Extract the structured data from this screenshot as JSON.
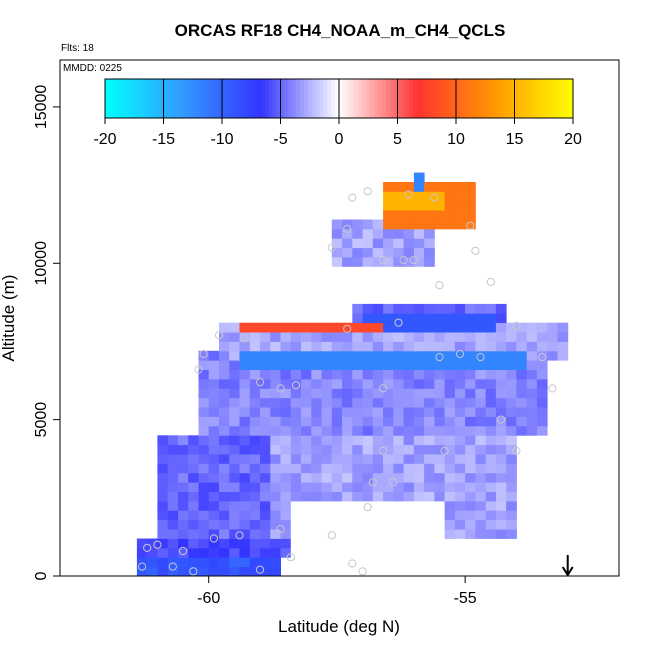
{
  "chart_data": {
    "type": "heatmap",
    "title": "ORCAS RF18 CH4_NOAA_m_CH4_QCLS",
    "flights_label": "Flts: 18",
    "date_label": "MMDD: 0225",
    "xlabel": "Latitude (deg N)",
    "ylabel": "Altitude (m)",
    "xlim": [
      -62.9,
      -52.0
    ],
    "ylim": [
      0,
      16500
    ],
    "x_ticks": [
      -60,
      -55
    ],
    "x_tick_labels": [
      "-60",
      "-55"
    ],
    "y_ticks": [
      0,
      5000,
      10000,
      15000
    ],
    "y_tick_labels": [
      "0",
      "5000",
      "10000",
      "15000"
    ],
    "colorbar": {
      "range": [
        -20,
        20
      ],
      "ticks": [
        -20,
        -15,
        -10,
        -5,
        0,
        5,
        10,
        15,
        20
      ],
      "tick_labels": [
        "-20",
        "-15",
        "-10",
        "-5",
        "0",
        "5",
        "10",
        "15",
        "20"
      ],
      "colors": [
        "#00ffff",
        "#3399ff",
        "#3333ff",
        "#ffffff",
        "#ff3333",
        "#ff9900",
        "#ffff00"
      ]
    },
    "cell_size": {
      "dlat": 0.2,
      "dalt": 300
    },
    "field_bands": [
      {
        "lat_min": -61.4,
        "lat_max": -58.6,
        "alt_min": 0,
        "alt_max": 600,
        "value": -9
      },
      {
        "lat_min": -61.4,
        "lat_max": -57.0,
        "alt_min": 600,
        "alt_max": 1200,
        "value": -6
      },
      {
        "lat_min": -61.0,
        "lat_max": -58.8,
        "alt_min": 1200,
        "alt_max": 4500,
        "value": -5
      },
      {
        "lat_min": -58.8,
        "lat_max": -54.0,
        "alt_min": 1200,
        "alt_max": 4500,
        "value": -3
      },
      {
        "lat_min": -60.2,
        "lat_max": -53.4,
        "alt_min": 4500,
        "alt_max": 7000,
        "value": -4
      },
      {
        "lat_min": -59.8,
        "lat_max": -53.0,
        "alt_min": 7000,
        "alt_max": 8200,
        "value": -3
      },
      {
        "lat_min": -57.2,
        "lat_max": -54.2,
        "alt_min": 8200,
        "alt_max": 8600,
        "value": -5
      },
      {
        "lat_min": -57.6,
        "lat_max": -55.6,
        "alt_min": 10000,
        "alt_max": 11500,
        "value": -3
      }
    ],
    "features": [
      {
        "name": "low-altitude-white-patch",
        "lat_min": -58.4,
        "lat_max": -55.4,
        "alt_min": 600,
        "alt_max": 2400,
        "value": 0
      },
      {
        "name": "blue-band-6900m",
        "lat_min": -59.5,
        "lat_max": -54.0,
        "alt_min": 6600,
        "alt_max": 7200,
        "value": -12
      },
      {
        "name": "blue-band-8200m",
        "lat_min": -57.0,
        "lat_max": -54.4,
        "alt_min": 7900,
        "alt_max": 8300,
        "value": -9
      },
      {
        "name": "red-band-7900m",
        "lat_min": -59.4,
        "lat_max": -56.6,
        "alt_min": 7700,
        "alt_max": 8000,
        "value": 8
      },
      {
        "name": "stratospheric-red-core",
        "lat_min": -56.7,
        "lat_max": -55.0,
        "alt_min": 11000,
        "alt_max": 12300,
        "value": 11
      },
      {
        "name": "stratospheric-orange-core",
        "lat_min": -56.6,
        "lat_max": -55.4,
        "alt_min": 11700,
        "alt_max": 12300,
        "value": 15
      },
      {
        "name": "blue-cell-12300m",
        "lat_min": -56.0,
        "lat_max": -55.8,
        "alt_min": 12200,
        "alt_max": 12600,
        "value": -12
      }
    ],
    "flight_track_points": [
      [
        -61.3,
        300
      ],
      [
        -61.2,
        900
      ],
      [
        -61.0,
        1000
      ],
      [
        -60.7,
        300
      ],
      [
        -60.5,
        800
      ],
      [
        -60.3,
        150
      ],
      [
        -59.9,
        1200
      ],
      [
        -59.4,
        1300
      ],
      [
        -59.0,
        200
      ],
      [
        -58.6,
        1500
      ],
      [
        -58.4,
        600
      ],
      [
        -57.6,
        1300
      ],
      [
        -57.2,
        400
      ],
      [
        -57.0,
        150
      ],
      [
        -56.9,
        2200
      ],
      [
        -56.8,
        3000
      ],
      [
        -56.6,
        6000
      ],
      [
        -56.4,
        3000
      ],
      [
        -60.2,
        6600
      ],
      [
        -60.1,
        7100
      ],
      [
        -59.8,
        7700
      ],
      [
        -59.3,
        7600
      ],
      [
        -59.0,
        6200
      ],
      [
        -58.6,
        6000
      ],
      [
        -58.3,
        6100
      ],
      [
        -57.3,
        7900
      ],
      [
        -56.3,
        8100
      ],
      [
        -55.5,
        7000
      ],
      [
        -55.1,
        7100
      ],
      [
        -54.7,
        7000
      ],
      [
        -54.0,
        8000
      ],
      [
        -53.5,
        7000
      ],
      [
        -53.3,
        6000
      ],
      [
        -54.3,
        5000
      ],
      [
        -54.0,
        4000
      ],
      [
        -56.6,
        10100
      ],
      [
        -56.2,
        10100
      ],
      [
        -56.0,
        10100
      ],
      [
        -55.5,
        9300
      ],
      [
        -54.8,
        10400
      ],
      [
        -54.5,
        9400
      ],
      [
        -57.6,
        10500
      ],
      [
        -57.3,
        11100
      ],
      [
        -57.2,
        12100
      ],
      [
        -56.9,
        12300
      ],
      [
        -56.1,
        12200
      ],
      [
        -55.6,
        12100
      ],
      [
        -54.9,
        11200
      ],
      [
        -55.4,
        4000
      ],
      [
        -56.6,
        4000
      ]
    ],
    "marker_latitude": -53.0
  }
}
